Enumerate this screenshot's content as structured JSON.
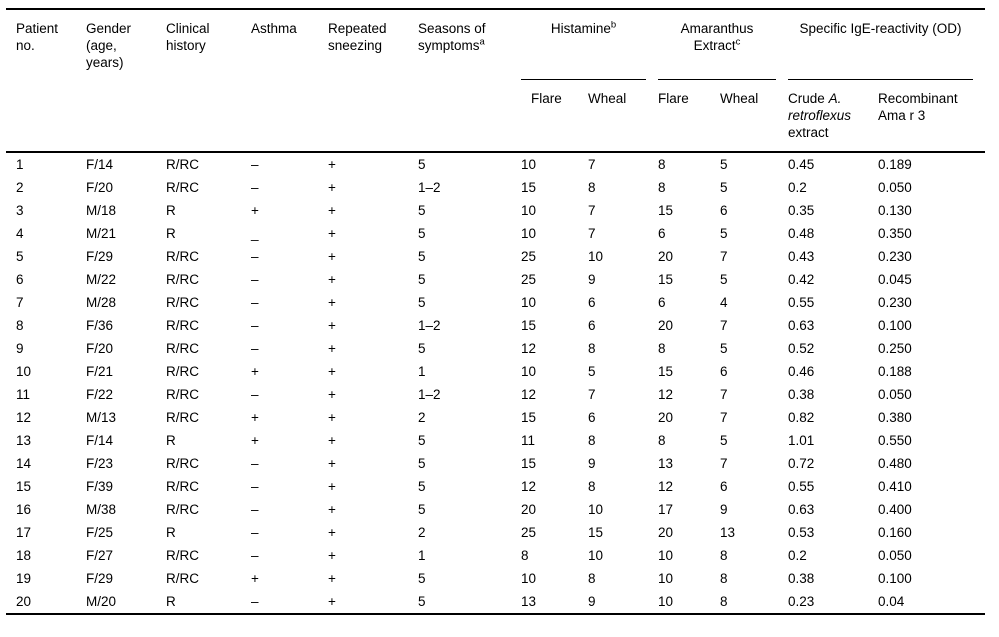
{
  "table": {
    "headers": {
      "patient_no": "Patient no.",
      "gender": "Gender (age, years)",
      "clinical_history": "Clinical history",
      "asthma": "Asthma",
      "repeated_sneezing": "Repeated sneezing",
      "seasons": "Seasons of symptoms",
      "seasons_sup": "a",
      "histamine": "Histamine",
      "histamine_sup": "b",
      "amaranthus": "Amaranthus Extract",
      "amaranthus_sup": "c",
      "ige": "Specific IgE-reactivity (OD)",
      "crude_prefix": "Crude ",
      "crude_italic": "A. retroflexus",
      "crude_suffix": " extract",
      "recombinant": "Recombinant Ama r 3"
    },
    "subheaders": [
      "Flare",
      "Wheal",
      "Flare",
      "Wheal"
    ],
    "col_keys": [
      "patient-no",
      "gender-age",
      "clinical-history",
      "asthma",
      "repeated-sneezing",
      "seasons-of-symptoms",
      "histamine-flare",
      "histamine-wheal",
      "amaranthus-flare",
      "amaranthus-wheal",
      "crude-extract-od",
      "recombinant-ama-r3-od"
    ],
    "rows": [
      [
        "1",
        "F/14",
        "R/RC",
        "–",
        "+",
        "5",
        "10",
        "7",
        "8",
        "5",
        "0.45",
        "0.189"
      ],
      [
        "2",
        "F/20",
        "R/RC",
        "–",
        "+",
        "1–2",
        "15",
        "8",
        "8",
        "5",
        "0.2",
        "0.050"
      ],
      [
        "3",
        "M/18",
        "R",
        "+",
        "+",
        "5",
        "10",
        "7",
        "15",
        "6",
        "0.35",
        "0.130"
      ],
      [
        "4",
        "M/21",
        "R",
        "_",
        "+",
        "5",
        "10",
        "7",
        "6",
        "5",
        "0.48",
        "0.350"
      ],
      [
        "5",
        "F/29",
        "R/RC",
        "–",
        "+",
        "5",
        "25",
        "10",
        "20",
        "7",
        "0.43",
        "0.230"
      ],
      [
        "6",
        "M/22",
        "R/RC",
        "–",
        "+",
        "5",
        "25",
        "9",
        "15",
        "5",
        "0.42",
        "0.045"
      ],
      [
        "7",
        "M/28",
        "R/RC",
        "–",
        "+",
        "5",
        "10",
        "6",
        "6",
        "4",
        "0.55",
        "0.230"
      ],
      [
        "8",
        "F/36",
        "R/RC",
        "–",
        "+",
        "1–2",
        "15",
        "6",
        "20",
        "7",
        "0.63",
        "0.100"
      ],
      [
        "9",
        "F/20",
        "R/RC",
        "–",
        "+",
        "5",
        "12",
        "8",
        "8",
        "5",
        "0.52",
        "0.250"
      ],
      [
        "10",
        "F/21",
        "R/RC",
        "+",
        "+",
        "1",
        "10",
        "5",
        "15",
        "6",
        "0.46",
        "0.188"
      ],
      [
        "11",
        "F/22",
        "R/RC",
        "–",
        "+",
        "1–2",
        "12",
        "7",
        "12",
        "7",
        "0.38",
        "0.050"
      ],
      [
        "12",
        "M/13",
        "R/RC",
        "+",
        "+",
        "2",
        "15",
        "6",
        "20",
        "7",
        "0.82",
        "0.380"
      ],
      [
        "13",
        "F/14",
        "R",
        "+",
        "+",
        "5",
        "11",
        "8",
        "8",
        "5",
        "1.01",
        "0.550"
      ],
      [
        "14",
        "F/23",
        "R/RC",
        "–",
        "+",
        "5",
        "15",
        "9",
        "13",
        "7",
        "0.72",
        "0.480"
      ],
      [
        "15",
        "F/39",
        "R/RC",
        "–",
        "+",
        "5",
        "12",
        "8",
        "12",
        "6",
        "0.55",
        "0.410"
      ],
      [
        "16",
        "M/38",
        "R/RC",
        "–",
        "+",
        "5",
        "20",
        "10",
        "17",
        "9",
        "0.63",
        "0.400"
      ],
      [
        "17",
        "F/25",
        "R",
        "–",
        "+",
        "2",
        "25",
        "15",
        "20",
        "13",
        "0.53",
        "0.160"
      ],
      [
        "18",
        "F/27",
        "R/RC",
        "–",
        "+",
        "1",
        "8",
        "10",
        "10",
        "8",
        "0.2",
        "0.050"
      ],
      [
        "19",
        "F/29",
        "R/RC",
        "+",
        "+",
        "5",
        "10",
        "8",
        "10",
        "8",
        "0.38",
        "0.100"
      ],
      [
        "20",
        "M/20",
        "R",
        "–",
        "+",
        "5",
        "13",
        "9",
        "10",
        "8",
        "0.23",
        "0.04"
      ]
    ]
  }
}
